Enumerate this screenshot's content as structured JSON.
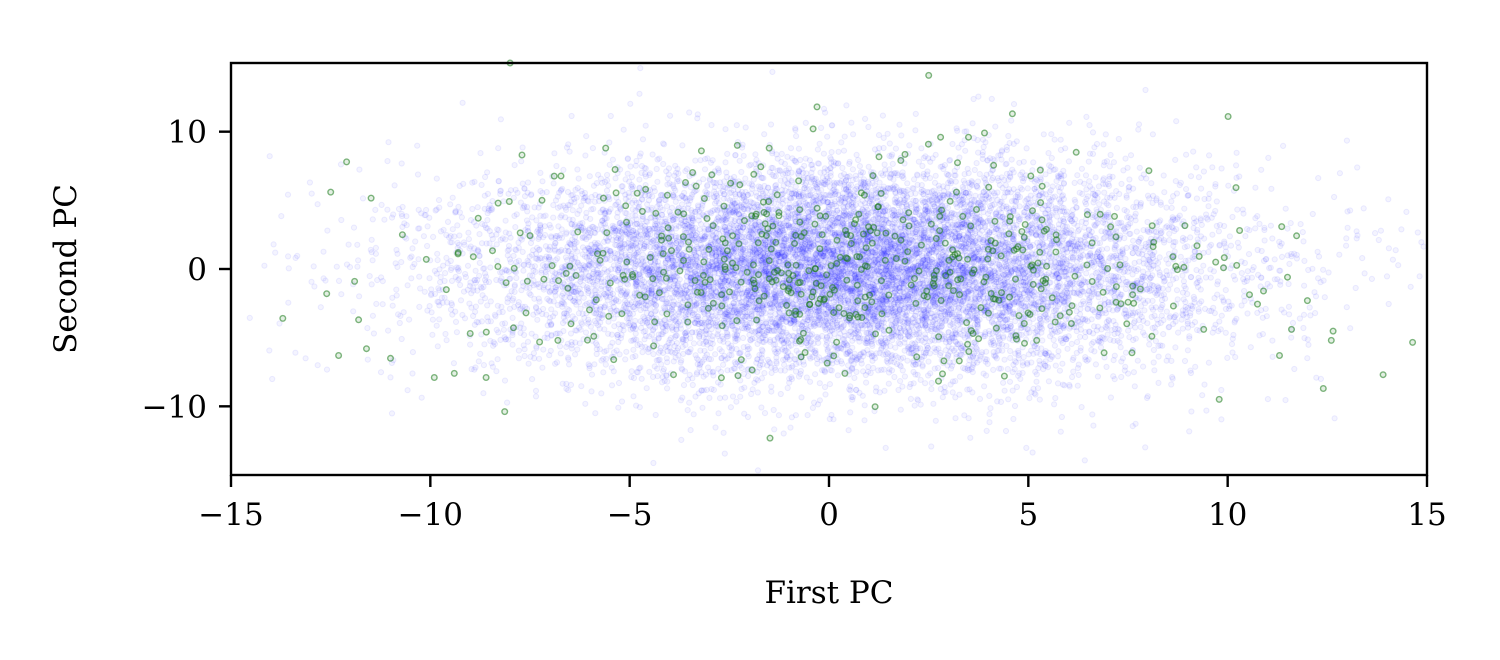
{
  "chart_data": {
    "type": "scatter",
    "xlabel": "First PC",
    "ylabel": "Second PC",
    "xlim": [
      -15,
      15
    ],
    "ylim": [
      -15,
      15
    ],
    "xticks": [
      -15,
      -10,
      -5,
      0,
      5,
      10,
      15
    ],
    "xtick_labels": [
      "−15",
      "−10",
      "−5",
      "0",
      "5",
      "10",
      "15"
    ],
    "yticks": [
      -10,
      0,
      10
    ],
    "ytick_labels": [
      "−10",
      "0",
      "10"
    ],
    "grid": false,
    "legend": "none",
    "series": [
      {
        "color": "#0000ff",
        "style": "semi-transparent small hollow circles, dense cloud",
        "approx_count": 12000,
        "distribution": {
          "x_center": 0.5,
          "x_spread": 4.5,
          "y_center": 0,
          "y_spread": 3.8
        }
      },
      {
        "color": "#1a7a1a",
        "style": "semi-transparent small hollow circles",
        "approx_count": 500,
        "points": [
          [
            -12.5,
            5.6
          ],
          [
            -12.1,
            7.8
          ],
          [
            -12.6,
            -1.8
          ],
          [
            -12.3,
            -6.3
          ],
          [
            -11.9,
            -0.9
          ],
          [
            -11.8,
            -3.7
          ],
          [
            -11.6,
            -5.8
          ],
          [
            -11.0,
            -6.5
          ],
          [
            -10.7,
            2.5
          ],
          [
            -10.1,
            0.7
          ],
          [
            -9.9,
            -7.9
          ],
          [
            -9.6,
            -1.5
          ],
          [
            -9.4,
            -7.6
          ],
          [
            -9.0,
            -4.7
          ],
          [
            -8.8,
            3.7
          ],
          [
            -8.6,
            -7.9
          ],
          [
            -8.3,
            4.8
          ],
          [
            -8.1,
            -1.0
          ],
          [
            -7.7,
            8.3
          ],
          [
            -7.6,
            -3.2
          ],
          [
            -7.2,
            5.0
          ],
          [
            -6.8,
            -5.2
          ],
          [
            -6.3,
            2.7
          ],
          [
            -5.9,
            -4.9
          ],
          [
            -5.6,
            8.8
          ],
          [
            -5.4,
            -6.6
          ],
          [
            -5.1,
            4.6
          ],
          [
            -4.6,
            5.8
          ],
          [
            -4.4,
            -5.6
          ],
          [
            -4.2,
            2.4
          ],
          [
            -3.9,
            -7.7
          ],
          [
            -3.6,
            6.3
          ],
          [
            -3.3,
            -1.7
          ],
          [
            -3.2,
            8.6
          ],
          [
            -2.9,
            -2.5
          ],
          [
            -2.6,
            1.9
          ],
          [
            -2.3,
            9.0
          ],
          [
            -2.2,
            -6.6
          ],
          [
            -1.9,
            -0.8
          ],
          [
            -1.5,
            8.8
          ],
          [
            -1.3,
            5.4
          ],
          [
            -1.0,
            -3.2
          ],
          [
            -0.7,
            -6.4
          ],
          [
            -0.4,
            10.2
          ],
          [
            -0.3,
            11.8
          ],
          [
            0.2,
            2.1
          ],
          [
            0.4,
            -7.6
          ],
          [
            0.7,
            0.9
          ],
          [
            1.1,
            6.8
          ],
          [
            1.5,
            -1.9
          ],
          [
            1.8,
            7.9
          ],
          [
            2.2,
            -6.4
          ],
          [
            2.5,
            14.1
          ],
          [
            2.8,
            9.6
          ],
          [
            3.1,
            1.4
          ],
          [
            3.5,
            9.6
          ],
          [
            3.6,
            -0.3
          ],
          [
            3.9,
            9.9
          ],
          [
            4.2,
            -4.3
          ],
          [
            4.6,
            11.3
          ],
          [
            4.9,
            2.3
          ],
          [
            5.3,
            7.2
          ],
          [
            5.6,
            -2.1
          ],
          [
            5.8,
            -3.4
          ],
          [
            6.2,
            8.5
          ],
          [
            6.6,
            1.9
          ],
          [
            6.9,
            -6.1
          ],
          [
            7.3,
            0.3
          ],
          [
            7.6,
            -6.1
          ],
          [
            8.1,
            -4.9
          ],
          [
            8.7,
            0.2
          ],
          [
            9.4,
            -4.4
          ],
          [
            9.7,
            0.5
          ],
          [
            10.3,
            2.8
          ],
          [
            10.9,
            -1.6
          ],
          [
            11.3,
            -6.3
          ],
          [
            11.5,
            -0.6
          ],
          [
            11.6,
            -4.4
          ],
          [
            12.0,
            -2.3
          ],
          [
            12.4,
            -8.7
          ],
          [
            12.6,
            -5.2
          ],
          [
            13.9,
            -7.7
          ],
          [
            -8.0,
            15.0
          ],
          [
            -13.7,
            -3.6
          ],
          [
            -9.3,
            1.2
          ],
          [
            -6.5,
            0.2
          ],
          [
            -1.6,
            3.3
          ],
          [
            0.9,
            -2.8
          ],
          [
            2.0,
            4.1
          ],
          [
            4.4,
            -7.8
          ]
        ]
      }
    ]
  }
}
